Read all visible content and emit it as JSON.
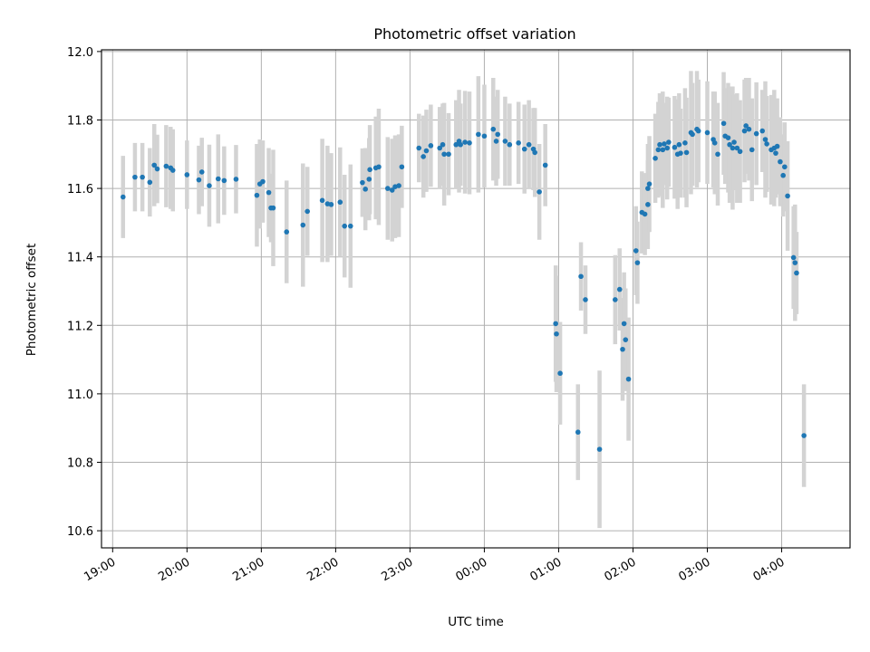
{
  "chart_data": {
    "type": "scatter",
    "title": "Photometric offset variation",
    "xlabel": "UTC time",
    "ylabel": "Photometric offset",
    "grid": true,
    "xlim": [
      18.85,
      28.92
    ],
    "ylim": [
      10.55,
      12.005
    ],
    "x_unit": "hours since 00:00 of first day (values above 24 are after midnight)",
    "x_ticks": [
      {
        "v": 19,
        "label": "19:00"
      },
      {
        "v": 20,
        "label": "20:00"
      },
      {
        "v": 21,
        "label": "21:00"
      },
      {
        "v": 22,
        "label": "22:00"
      },
      {
        "v": 23,
        "label": "23:00"
      },
      {
        "v": 24,
        "label": "00:00"
      },
      {
        "v": 25,
        "label": "01:00"
      },
      {
        "v": 26,
        "label": "02:00"
      },
      {
        "v": 27,
        "label": "03:00"
      },
      {
        "v": 28,
        "label": "04:00"
      }
    ],
    "y_ticks": [
      {
        "v": 10.6,
        "label": "10.6"
      },
      {
        "v": 10.8,
        "label": "10.8"
      },
      {
        "v": 11.0,
        "label": "11.0"
      },
      {
        "v": 11.2,
        "label": "11.2"
      },
      {
        "v": 11.4,
        "label": "11.4"
      },
      {
        "v": 11.6,
        "label": "11.6"
      },
      {
        "v": 11.8,
        "label": "11.8"
      },
      {
        "v": 12.0,
        "label": "12.0"
      }
    ],
    "colors": {
      "point": "#1f77b4",
      "errorbar": "#d3d3d3",
      "grid": "#b0b0b0",
      "axes": "#000000"
    },
    "points": [
      [
        19.14,
        11.575,
        0.12
      ],
      [
        19.3,
        11.633,
        0.1
      ],
      [
        19.4,
        11.633,
        0.1
      ],
      [
        19.5,
        11.618,
        0.1
      ],
      [
        19.56,
        11.668,
        0.12
      ],
      [
        19.6,
        11.657,
        0.1
      ],
      [
        19.72,
        11.665,
        0.12
      ],
      [
        19.78,
        11.66,
        0.12
      ],
      [
        19.81,
        11.653,
        0.12
      ],
      [
        20.0,
        11.64,
        0.1
      ],
      [
        20.16,
        11.625,
        0.1
      ],
      [
        20.2,
        11.648,
        0.1
      ],
      [
        20.3,
        11.608,
        0.12
      ],
      [
        20.42,
        11.628,
        0.13
      ],
      [
        20.5,
        11.623,
        0.1
      ],
      [
        20.66,
        11.627,
        0.1
      ],
      [
        20.94,
        11.58,
        0.15
      ],
      [
        20.98,
        11.613,
        0.13
      ],
      [
        21.02,
        11.62,
        0.12
      ],
      [
        21.1,
        11.588,
        0.13
      ],
      [
        21.13,
        11.543,
        0.1
      ],
      [
        21.16,
        11.543,
        0.17
      ],
      [
        21.34,
        11.473,
        0.15
      ],
      [
        21.56,
        11.493,
        0.18
      ],
      [
        21.62,
        11.533,
        0.13
      ],
      [
        21.82,
        11.565,
        0.18
      ],
      [
        21.89,
        11.555,
        0.17
      ],
      [
        21.94,
        11.553,
        0.15
      ],
      [
        22.06,
        11.56,
        0.16
      ],
      [
        22.12,
        11.49,
        0.15
      ],
      [
        22.2,
        11.49,
        0.18
      ],
      [
        22.36,
        11.617,
        0.1
      ],
      [
        22.4,
        11.598,
        0.12
      ],
      [
        22.45,
        11.627,
        0.12
      ],
      [
        22.46,
        11.655,
        0.13
      ],
      [
        22.54,
        11.66,
        0.15
      ],
      [
        22.58,
        11.663,
        0.17
      ],
      [
        22.7,
        11.6,
        0.15
      ],
      [
        22.76,
        11.595,
        0.15
      ],
      [
        22.8,
        11.605,
        0.15
      ],
      [
        22.85,
        11.608,
        0.15
      ],
      [
        22.89,
        11.663,
        0.12
      ],
      [
        23.12,
        11.718,
        0.1
      ],
      [
        23.18,
        11.693,
        0.12
      ],
      [
        23.22,
        11.71,
        0.12
      ],
      [
        23.28,
        11.725,
        0.12
      ],
      [
        23.4,
        11.718,
        0.12
      ],
      [
        23.44,
        11.728,
        0.12
      ],
      [
        23.46,
        11.7,
        0.15
      ],
      [
        23.52,
        11.7,
        0.12
      ],
      [
        23.62,
        11.728,
        0.13
      ],
      [
        23.66,
        11.738,
        0.15
      ],
      [
        23.68,
        11.728,
        0.12
      ],
      [
        23.74,
        11.735,
        0.15
      ],
      [
        23.8,
        11.733,
        0.15
      ],
      [
        23.92,
        11.758,
        0.17
      ],
      [
        24.0,
        11.753,
        0.15
      ],
      [
        24.12,
        11.773,
        0.15
      ],
      [
        24.16,
        11.738,
        0.13
      ],
      [
        24.18,
        11.758,
        0.13
      ],
      [
        24.28,
        11.738,
        0.13
      ],
      [
        24.34,
        11.728,
        0.12
      ],
      [
        24.46,
        11.733,
        0.12
      ],
      [
        24.54,
        11.715,
        0.13
      ],
      [
        24.6,
        11.728,
        0.13
      ],
      [
        24.66,
        11.715,
        0.12
      ],
      [
        24.68,
        11.705,
        0.13
      ],
      [
        24.74,
        11.59,
        0.14
      ],
      [
        24.82,
        11.668,
        0.12
      ],
      [
        24.96,
        11.205,
        0.17
      ],
      [
        24.97,
        11.175,
        0.17
      ],
      [
        25.02,
        11.06,
        0.15
      ],
      [
        25.26,
        10.888,
        0.14
      ],
      [
        25.3,
        11.343,
        0.1
      ],
      [
        25.36,
        11.275,
        0.1
      ],
      [
        25.55,
        10.838,
        0.23
      ],
      [
        25.76,
        11.275,
        0.13
      ],
      [
        25.82,
        11.305,
        0.12
      ],
      [
        25.86,
        11.13,
        0.15
      ],
      [
        25.88,
        11.205,
        0.15
      ],
      [
        25.9,
        11.158,
        0.15
      ],
      [
        25.94,
        11.043,
        0.18
      ],
      [
        26.04,
        11.418,
        0.13
      ],
      [
        26.06,
        11.383,
        0.12
      ],
      [
        26.12,
        11.53,
        0.12
      ],
      [
        26.16,
        11.525,
        0.12
      ],
      [
        26.2,
        11.553,
        0.13
      ],
      [
        26.2,
        11.6,
        0.13
      ],
      [
        26.22,
        11.613,
        0.14
      ],
      [
        26.3,
        11.688,
        0.13
      ],
      [
        26.34,
        11.713,
        0.14
      ],
      [
        26.36,
        11.728,
        0.15
      ],
      [
        26.4,
        11.713,
        0.17
      ],
      [
        26.42,
        11.73,
        0.12
      ],
      [
        26.46,
        11.718,
        0.15
      ],
      [
        26.48,
        11.735,
        0.13
      ],
      [
        26.56,
        11.72,
        0.15
      ],
      [
        26.6,
        11.7,
        0.16
      ],
      [
        26.62,
        11.728,
        0.15
      ],
      [
        26.64,
        11.703,
        0.13
      ],
      [
        26.7,
        11.733,
        0.16
      ],
      [
        26.72,
        11.705,
        0.16
      ],
      [
        26.78,
        11.763,
        0.18
      ],
      [
        26.8,
        11.758,
        0.15
      ],
      [
        26.86,
        11.773,
        0.17
      ],
      [
        26.88,
        11.768,
        0.15
      ],
      [
        27.0,
        11.763,
        0.15
      ],
      [
        27.08,
        11.743,
        0.14
      ],
      [
        27.1,
        11.733,
        0.15
      ],
      [
        27.14,
        11.7,
        0.15
      ],
      [
        27.22,
        11.79,
        0.15
      ],
      [
        27.24,
        11.753,
        0.14
      ],
      [
        27.28,
        11.748,
        0.16
      ],
      [
        27.3,
        11.728,
        0.17
      ],
      [
        27.34,
        11.718,
        0.18
      ],
      [
        27.36,
        11.735,
        0.14
      ],
      [
        27.4,
        11.718,
        0.16
      ],
      [
        27.44,
        11.708,
        0.15
      ],
      [
        27.5,
        11.768,
        0.15
      ],
      [
        27.52,
        11.783,
        0.14
      ],
      [
        27.56,
        11.773,
        0.15
      ],
      [
        27.6,
        11.713,
        0.15
      ],
      [
        27.66,
        11.76,
        0.15
      ],
      [
        27.74,
        11.768,
        0.12
      ],
      [
        27.78,
        11.743,
        0.17
      ],
      [
        27.8,
        11.73,
        0.14
      ],
      [
        27.86,
        11.713,
        0.16
      ],
      [
        27.9,
        11.718,
        0.17
      ],
      [
        27.92,
        11.703,
        0.13
      ],
      [
        27.94,
        11.723,
        0.14
      ],
      [
        27.98,
        11.678,
        0.13
      ],
      [
        28.02,
        11.638,
        0.12
      ],
      [
        28.04,
        11.663,
        0.13
      ],
      [
        28.08,
        11.578,
        0.16
      ],
      [
        28.16,
        11.398,
        0.15
      ],
      [
        28.18,
        11.383,
        0.17
      ],
      [
        28.2,
        11.353,
        0.12
      ],
      [
        28.3,
        10.878,
        0.15
      ]
    ]
  }
}
